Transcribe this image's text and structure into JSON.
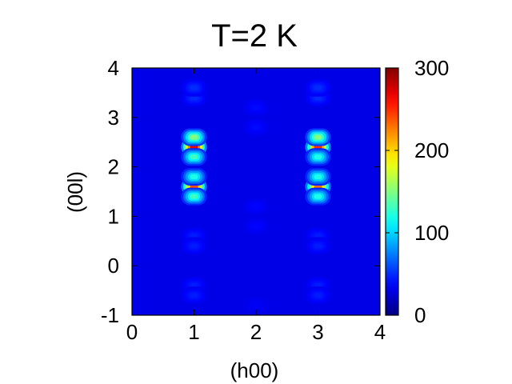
{
  "chart_data": {
    "type": "heatmap",
    "title": "T=2 K",
    "xlabel": "(h00)",
    "ylabel": "(00l)",
    "xlim": [
      0,
      4
    ],
    "ylim": [
      -1,
      4
    ],
    "x_ticks": [
      "0",
      "1",
      "2",
      "3",
      "4"
    ],
    "y_ticks": [
      "-1",
      "0",
      "1",
      "2",
      "3",
      "4"
    ],
    "colorbar": {
      "range": [
        0,
        300
      ],
      "ticks": [
        "0",
        "100",
        "200",
        "300"
      ],
      "colormap": "jet",
      "colors": [
        "#00007f",
        "#0000ff",
        "#00ffff",
        "#ffff00",
        "#ff0000",
        "#7f0000"
      ]
    },
    "background_value": 30,
    "peaks": [
      {
        "h": 1,
        "l": 2.4,
        "value": 270
      },
      {
        "h": 1,
        "l": 2.6,
        "value": 150
      },
      {
        "h": 1,
        "l": 2.2,
        "value": 130
      },
      {
        "h": 1,
        "l": 1.6,
        "value": 240
      },
      {
        "h": 1,
        "l": 1.8,
        "value": 120
      },
      {
        "h": 1,
        "l": 1.4,
        "value": 130
      },
      {
        "h": 1,
        "l": 3.4,
        "value": 50
      },
      {
        "h": 1,
        "l": 3.6,
        "value": 50
      },
      {
        "h": 1,
        "l": 0.6,
        "value": 45
      },
      {
        "h": 1,
        "l": 0.4,
        "value": 45
      },
      {
        "h": 1,
        "l": -0.4,
        "value": 45
      },
      {
        "h": 1,
        "l": -0.6,
        "value": 45
      },
      {
        "h": 3,
        "l": 2.4,
        "value": 250
      },
      {
        "h": 3,
        "l": 2.6,
        "value": 150
      },
      {
        "h": 3,
        "l": 2.2,
        "value": 120
      },
      {
        "h": 3,
        "l": 1.6,
        "value": 230
      },
      {
        "h": 3,
        "l": 1.8,
        "value": 120
      },
      {
        "h": 3,
        "l": 1.4,
        "value": 120
      },
      {
        "h": 3,
        "l": 3.4,
        "value": 50
      },
      {
        "h": 3,
        "l": 3.6,
        "value": 50
      },
      {
        "h": 3,
        "l": 0.6,
        "value": 45
      },
      {
        "h": 3,
        "l": 0.4,
        "value": 45
      },
      {
        "h": 3,
        "l": -0.4,
        "value": 45
      },
      {
        "h": 3,
        "l": -0.6,
        "value": 45
      },
      {
        "h": 2,
        "l": 3.2,
        "value": 40
      },
      {
        "h": 2,
        "l": 2.8,
        "value": 40
      },
      {
        "h": 2,
        "l": 1.2,
        "value": 38
      },
      {
        "h": 2,
        "l": 0.8,
        "value": 38
      },
      {
        "h": 2,
        "l": -0.8,
        "value": 35
      }
    ]
  }
}
